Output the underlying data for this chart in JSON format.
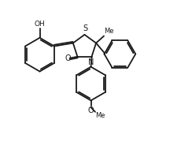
{
  "background_color": "#ffffff",
  "bond_color": "#1a1a1a",
  "line_width": 1.3,
  "figure_width": 2.44,
  "figure_height": 1.99,
  "dpi": 100,
  "xlim": [
    0,
    2.44
  ],
  "ylim": [
    0,
    1.99
  ]
}
